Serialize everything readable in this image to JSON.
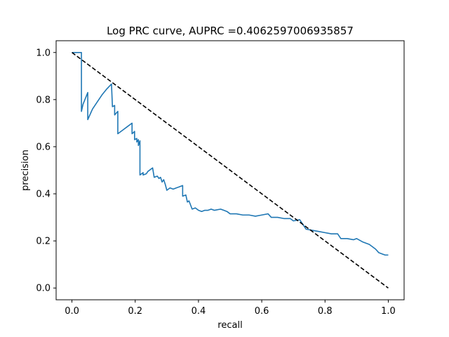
{
  "chart_data": {
    "type": "line",
    "title": "Log PRC curve, AUPRC =0.4062597006935857",
    "xlabel": "recall",
    "ylabel": "precision",
    "xlim": [
      -0.05,
      1.05
    ],
    "ylim": [
      -0.05,
      1.05
    ],
    "x_ticks": [
      0.0,
      0.2,
      0.4,
      0.6,
      0.8,
      1.0
    ],
    "x_tick_labels": [
      "0.0",
      "0.2",
      "0.4",
      "0.6",
      "0.8",
      "1.0"
    ],
    "y_ticks": [
      0.0,
      0.2,
      0.4,
      0.6,
      0.8,
      1.0
    ],
    "y_tick_labels": [
      "0.0",
      "0.2",
      "0.4",
      "0.6",
      "0.8",
      "1.0"
    ],
    "grid": false,
    "series": [
      {
        "color": "#1f77b4",
        "style": "solid",
        "points": [
          [
            0.0,
            1.0
          ],
          [
            0.03,
            1.0
          ],
          [
            0.03,
            0.75
          ],
          [
            0.035,
            0.78
          ],
          [
            0.05,
            0.83
          ],
          [
            0.05,
            0.715
          ],
          [
            0.065,
            0.76
          ],
          [
            0.08,
            0.79
          ],
          [
            0.095,
            0.82
          ],
          [
            0.11,
            0.845
          ],
          [
            0.125,
            0.866
          ],
          [
            0.128,
            0.77
          ],
          [
            0.135,
            0.775
          ],
          [
            0.135,
            0.735
          ],
          [
            0.145,
            0.75
          ],
          [
            0.145,
            0.655
          ],
          [
            0.16,
            0.67
          ],
          [
            0.175,
            0.685
          ],
          [
            0.19,
            0.7
          ],
          [
            0.19,
            0.655
          ],
          [
            0.198,
            0.665
          ],
          [
            0.198,
            0.63
          ],
          [
            0.205,
            0.635
          ],
          [
            0.205,
            0.62
          ],
          [
            0.21,
            0.63
          ],
          [
            0.21,
            0.605
          ],
          [
            0.215,
            0.625
          ],
          [
            0.215,
            0.48
          ],
          [
            0.225,
            0.49
          ],
          [
            0.225,
            0.48
          ],
          [
            0.235,
            0.485
          ],
          [
            0.24,
            0.495
          ],
          [
            0.255,
            0.51
          ],
          [
            0.26,
            0.47
          ],
          [
            0.27,
            0.475
          ],
          [
            0.275,
            0.465
          ],
          [
            0.28,
            0.47
          ],
          [
            0.285,
            0.45
          ],
          [
            0.29,
            0.46
          ],
          [
            0.295,
            0.44
          ],
          [
            0.3,
            0.415
          ],
          [
            0.31,
            0.425
          ],
          [
            0.32,
            0.42
          ],
          [
            0.33,
            0.425
          ],
          [
            0.34,
            0.43
          ],
          [
            0.35,
            0.435
          ],
          [
            0.35,
            0.39
          ],
          [
            0.36,
            0.395
          ],
          [
            0.365,
            0.365
          ],
          [
            0.37,
            0.37
          ],
          [
            0.38,
            0.335
          ],
          [
            0.39,
            0.34
          ],
          [
            0.4,
            0.33
          ],
          [
            0.41,
            0.325
          ],
          [
            0.42,
            0.33
          ],
          [
            0.43,
            0.33
          ],
          [
            0.44,
            0.335
          ],
          [
            0.45,
            0.33
          ],
          [
            0.47,
            0.335
          ],
          [
            0.48,
            0.33
          ],
          [
            0.49,
            0.325
          ],
          [
            0.5,
            0.315
          ],
          [
            0.52,
            0.315
          ],
          [
            0.54,
            0.31
          ],
          [
            0.56,
            0.31
          ],
          [
            0.58,
            0.305
          ],
          [
            0.6,
            0.31
          ],
          [
            0.62,
            0.315
          ],
          [
            0.63,
            0.3
          ],
          [
            0.65,
            0.3
          ],
          [
            0.67,
            0.295
          ],
          [
            0.69,
            0.295
          ],
          [
            0.7,
            0.285
          ],
          [
            0.72,
            0.29
          ],
          [
            0.74,
            0.25
          ],
          [
            0.76,
            0.245
          ],
          [
            0.78,
            0.24
          ],
          [
            0.8,
            0.235
          ],
          [
            0.82,
            0.23
          ],
          [
            0.84,
            0.23
          ],
          [
            0.85,
            0.21
          ],
          [
            0.87,
            0.21
          ],
          [
            0.89,
            0.205
          ],
          [
            0.9,
            0.21
          ],
          [
            0.92,
            0.195
          ],
          [
            0.94,
            0.185
          ],
          [
            0.95,
            0.175
          ],
          [
            0.96,
            0.165
          ],
          [
            0.97,
            0.15
          ],
          [
            0.98,
            0.145
          ],
          [
            0.99,
            0.14
          ],
          [
            1.0,
            0.14
          ]
        ]
      },
      {
        "color": "#000000",
        "style": "dashed",
        "points": [
          [
            0.0,
            1.0
          ],
          [
            1.0,
            0.0
          ]
        ]
      }
    ]
  }
}
